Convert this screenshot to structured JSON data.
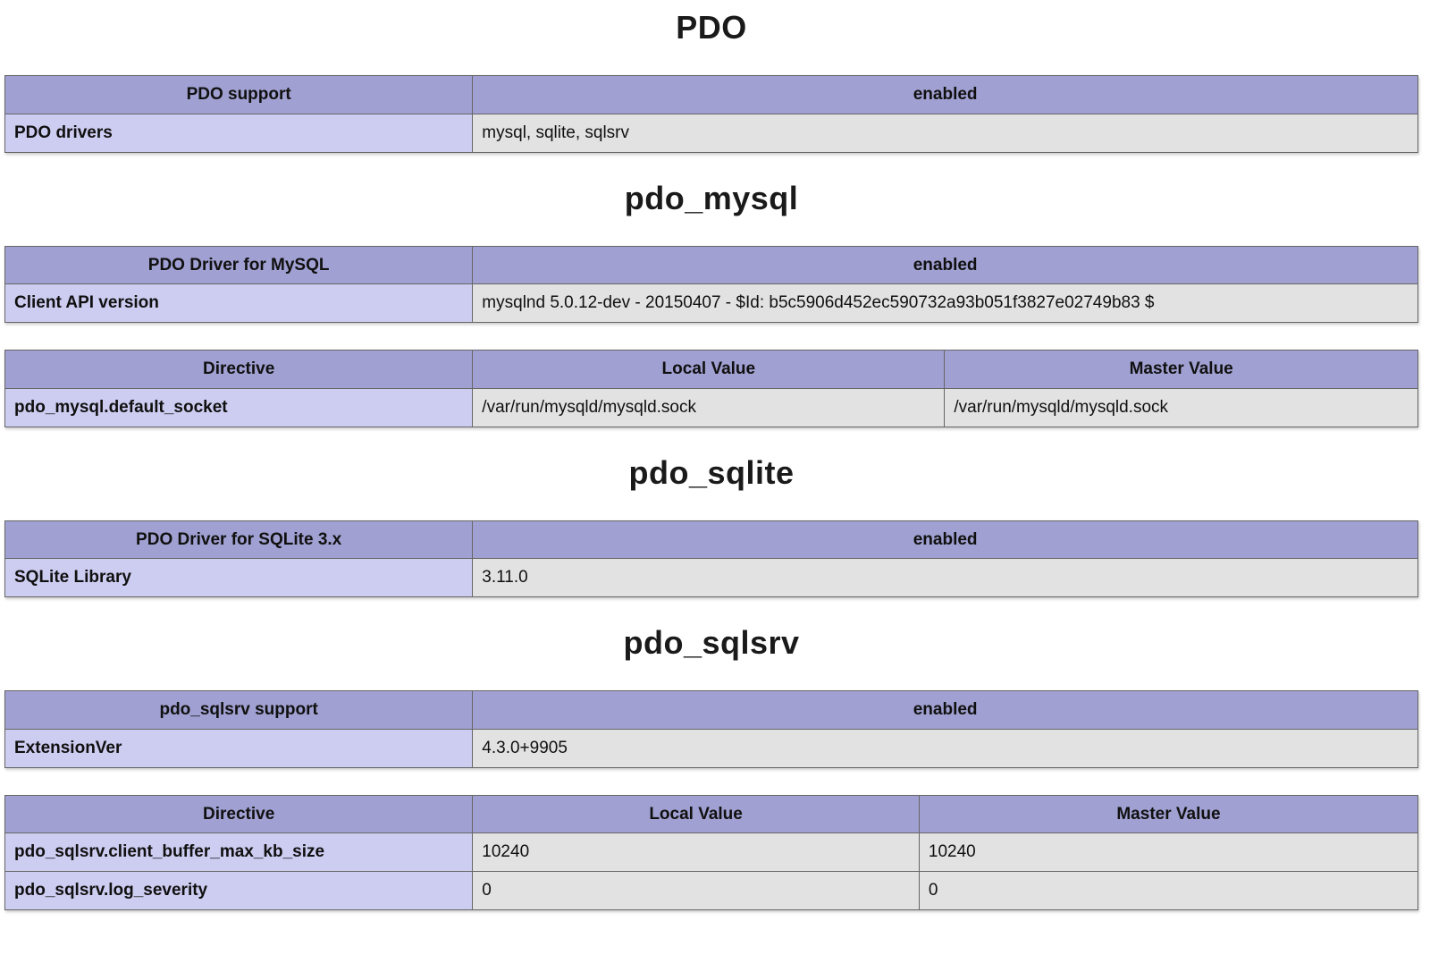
{
  "colors": {
    "header_bg": "#a0a0d2",
    "label_bg": "#cdcdf2",
    "value_bg": "#e2e2e2",
    "cell_border": "#666666",
    "table_shadow": "#cccccc"
  },
  "sections": [
    {
      "title": "PDO",
      "tables": [
        {
          "header": [
            "PDO support",
            "enabled"
          ],
          "rows": [
            [
              "PDO drivers",
              "mysql, sqlite, sqlsrv"
            ]
          ]
        }
      ]
    },
    {
      "title": "pdo_mysql",
      "tables": [
        {
          "header": [
            "PDO Driver for MySQL",
            "enabled"
          ],
          "rows": [
            [
              "Client API version",
              "mysqlnd 5.0.12-dev - 20150407 - $Id: b5c5906d452ec590732a93b051f3827e02749b83 $"
            ]
          ]
        },
        {
          "header": [
            "Directive",
            "Local Value",
            "Master Value"
          ],
          "rows": [
            [
              "pdo_mysql.default_socket",
              "/var/run/mysqld/mysqld.sock",
              "/var/run/mysqld/mysqld.sock"
            ]
          ]
        }
      ]
    },
    {
      "title": "pdo_sqlite",
      "tables": [
        {
          "header": [
            "PDO Driver for SQLite 3.x",
            "enabled"
          ],
          "rows": [
            [
              "SQLite Library",
              "3.11.0"
            ]
          ]
        }
      ]
    },
    {
      "title": "pdo_sqlsrv",
      "tables": [
        {
          "header": [
            "pdo_sqlsrv support",
            "enabled"
          ],
          "rows": [
            [
              "ExtensionVer",
              "4.3.0+9905"
            ]
          ]
        },
        {
          "header": [
            "Directive",
            "Local Value",
            "Master Value"
          ],
          "rows": [
            [
              "pdo_sqlsrv.client_buffer_max_kb_size",
              "10240",
              "10240"
            ],
            [
              "pdo_sqlsrv.log_severity",
              "0",
              "0"
            ]
          ]
        }
      ]
    }
  ]
}
